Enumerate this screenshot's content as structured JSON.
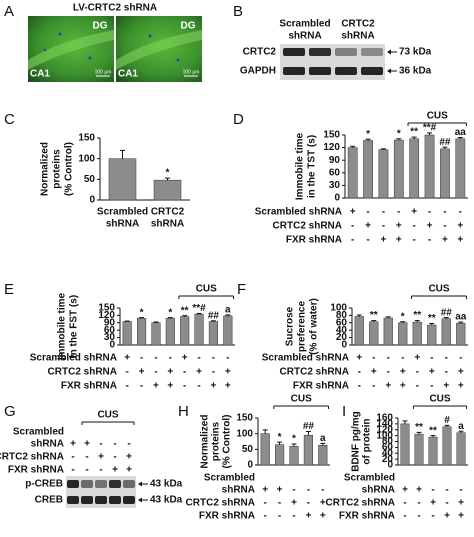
{
  "panel_a": {
    "panel": "A",
    "title": "LV-CRTC2 shRNA",
    "images": [
      {
        "labels": [
          "DG",
          "CA1"
        ],
        "scale": "100 μm"
      },
      {
        "labels": [
          "DG",
          "CA1"
        ],
        "scale": "100 μm"
      }
    ]
  },
  "panel_b": {
    "panel": "B",
    "columns": [
      [
        "Scrambled",
        "shRNA"
      ],
      [
        "CRTC2",
        "shRNA"
      ]
    ],
    "rows": [
      {
        "label": "CRTC2",
        "size": "73 kDa"
      },
      {
        "label": "GAPDH",
        "size": "36 kDa"
      }
    ]
  },
  "panel_g": {
    "panel": "G",
    "bracket": "CUS",
    "conditions": [
      {
        "name": [
          "Scrambled",
          "shRNA"
        ],
        "signs": [
          "+",
          "+",
          "-",
          "-",
          "-"
        ]
      },
      {
        "name": "CRTC2 shRNA",
        "signs": [
          "-",
          "-",
          "+",
          "-",
          "+"
        ]
      },
      {
        "name": "FXR shRNA",
        "signs": [
          "-",
          "-",
          "-",
          "+",
          "+"
        ]
      }
    ],
    "rows": [
      {
        "label": "p-CREB",
        "size": "43 kDa"
      },
      {
        "label": "CREB",
        "size": "43 kDa"
      }
    ]
  },
  "chart_data": [
    {
      "type": "bar",
      "panel": "C",
      "ylabel": [
        "Normalized",
        "proteins",
        "(% Control)"
      ],
      "categories": [
        [
          "Scrambled",
          "shRNA"
        ],
        [
          "CRTC2",
          "shRNA"
        ]
      ],
      "values": [
        100,
        48
      ],
      "errors": [
        20,
        5
      ],
      "annotations": [
        null,
        "*"
      ],
      "color": "#8c8c8c",
      "ylim": [
        0,
        150
      ],
      "yticks": [
        0,
        50,
        100,
        150
      ]
    },
    {
      "type": "bar",
      "panel": "D",
      "ylabel": [
        "Immobile time",
        "in the TST (s)"
      ],
      "values": [
        120,
        137,
        115,
        138,
        141,
        150,
        117,
        141
      ],
      "errors": [
        3,
        3,
        2,
        3,
        4,
        5,
        4,
        3
      ],
      "annotations": [
        null,
        "*",
        null,
        "*",
        "**",
        "**#",
        "##",
        "aa"
      ],
      "bracket": "CUS",
      "color": "#8c8c8c",
      "conditions": [
        {
          "name": "Scrambled shRNA",
          "signs": [
            "+",
            "-",
            "-",
            "-",
            "+",
            "-",
            "-",
            "-"
          ]
        },
        {
          "name": "CRTC2 shRNA",
          "signs": [
            "-",
            "+",
            "-",
            "+",
            "-",
            "+",
            "-",
            "+"
          ]
        },
        {
          "name": "FXR shRNA",
          "signs": [
            "-",
            "-",
            "+",
            "+",
            "-",
            "-",
            "+",
            "+"
          ]
        }
      ],
      "ylim": [
        0,
        150
      ],
      "yticks": [
        0,
        30,
        60,
        90,
        120,
        150
      ]
    },
    {
      "type": "bar",
      "panel": "E",
      "ylabel": [
        "Immobile time",
        "in the FST (s)"
      ],
      "values": [
        95,
        108,
        90,
        108,
        115,
        125,
        95,
        118
      ],
      "errors": [
        2,
        3,
        3,
        3,
        4,
        3,
        3,
        4
      ],
      "annotations": [
        null,
        "*",
        null,
        "*",
        "**",
        "**#",
        "##",
        "a"
      ],
      "bracket": "CUS",
      "color": "#8c8c8c",
      "conditions": [
        {
          "name": "Scrambled shRNA",
          "signs": [
            "+",
            "-",
            "-",
            "-",
            "+",
            "-",
            "-",
            "-"
          ]
        },
        {
          "name": "CRTC2 shRNA",
          "signs": [
            "-",
            "+",
            "-",
            "+",
            "-",
            "+",
            "-",
            "+"
          ]
        },
        {
          "name": "FXR shRNA",
          "signs": [
            "-",
            "-",
            "+",
            "+",
            "-",
            "-",
            "+",
            "+"
          ]
        }
      ],
      "ylim": [
        0,
        150
      ],
      "yticks": [
        0,
        30,
        60,
        90,
        120,
        150
      ]
    },
    {
      "type": "bar",
      "panel": "F",
      "ylabel": [
        "Sucrose",
        "preference",
        "(% of water)"
      ],
      "values": [
        77,
        63,
        73,
        60,
        62,
        54,
        71,
        59
      ],
      "errors": [
        4,
        3,
        3,
        3,
        4,
        4,
        3,
        3
      ],
      "annotations": [
        null,
        "**",
        null,
        "*",
        "**",
        "**",
        "##",
        "aa"
      ],
      "bracket": "CUS",
      "color": "#8c8c8c",
      "conditions": [
        {
          "name": "Scrambled shRNA",
          "signs": [
            "+",
            "-",
            "-",
            "-",
            "+",
            "-",
            "-",
            "-"
          ]
        },
        {
          "name": "CRTC2 shRNA",
          "signs": [
            "-",
            "+",
            "-",
            "+",
            "-",
            "+",
            "-",
            "+"
          ]
        },
        {
          "name": "FXR shRNA",
          "signs": [
            "-",
            "-",
            "+",
            "+",
            "-",
            "-",
            "+",
            "+"
          ]
        }
      ],
      "ylim": [
        0,
        100
      ],
      "yticks": [
        0,
        20,
        40,
        60,
        80,
        100
      ]
    },
    {
      "type": "bar",
      "panel": "H",
      "ylabel": [
        "Normalized",
        "proteins",
        "(% Control)"
      ],
      "values": [
        100,
        65,
        60,
        95,
        63
      ],
      "errors": [
        12,
        8,
        7,
        12,
        6
      ],
      "annotations": [
        null,
        "*",
        "*",
        "##",
        "a"
      ],
      "bracket": "CUS",
      "color": "#8c8c8c",
      "conditions": [
        {
          "name": [
            "Scrambled",
            "shRNA"
          ],
          "signs": [
            "+",
            "+",
            "-",
            "-",
            "-"
          ]
        },
        {
          "name": "CRTC2 shRNA",
          "signs": [
            "-",
            "-",
            "+",
            "-",
            "+"
          ]
        },
        {
          "name": "FXR shRNA",
          "signs": [
            "-",
            "-",
            "-",
            "+",
            "+"
          ]
        }
      ],
      "ylim": [
        0,
        150
      ],
      "yticks": [
        0,
        50,
        100,
        150
      ]
    },
    {
      "type": "bar",
      "panel": "I",
      "ylabel": [
        "BDNF pg/mg",
        "of protein"
      ],
      "values": [
        140,
        105,
        95,
        130,
        110
      ],
      "errors": [
        10,
        6,
        5,
        5,
        5
      ],
      "annotations": [
        null,
        "**",
        "**",
        "#",
        "a"
      ],
      "bracket": "CUS",
      "color": "#8c8c8c",
      "conditions": [
        {
          "name": [
            "Scrambled",
            "shRNA"
          ],
          "signs": [
            "+",
            "+",
            "-",
            "-",
            "-"
          ]
        },
        {
          "name": "CRTC2 shRNA",
          "signs": [
            "-",
            "-",
            "+",
            "-",
            "+"
          ]
        },
        {
          "name": "FXR shRNA",
          "signs": [
            "-",
            "-",
            "-",
            "+",
            "+"
          ]
        }
      ],
      "ylim": [
        0,
        160
      ],
      "yticks": [
        0,
        20,
        40,
        60,
        80,
        100,
        120,
        140,
        160
      ]
    }
  ]
}
